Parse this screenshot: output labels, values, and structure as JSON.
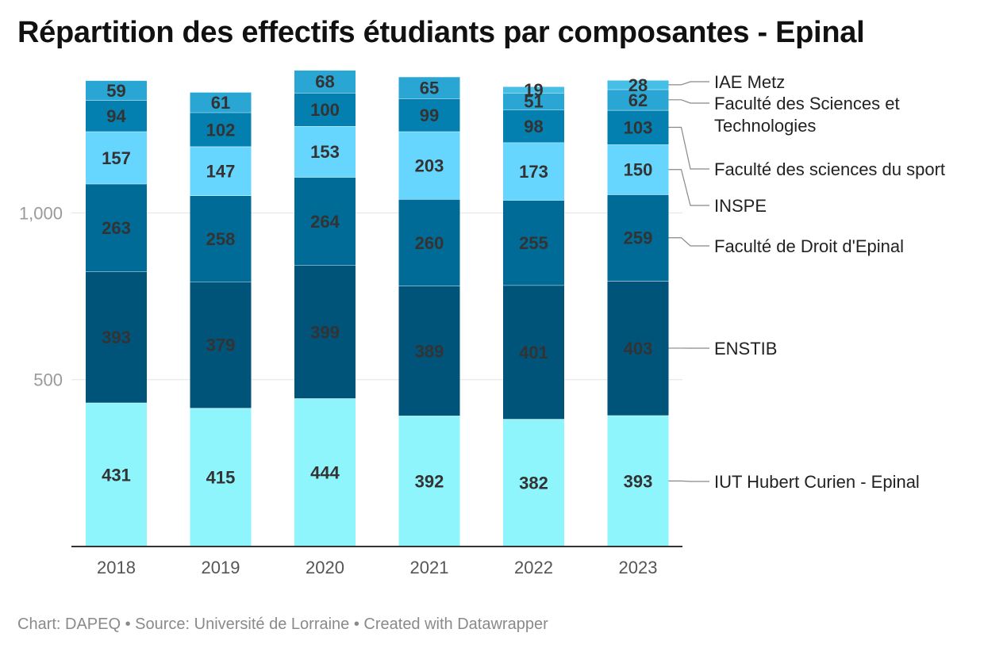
{
  "title": "Répartition des effectifs étudiants par composantes - Epinal",
  "footer": {
    "text": "Chart: DAPEQ • Source: Université de Lorraine • Created with Datawrapper"
  },
  "chart_data": {
    "type": "bar",
    "stacked": true,
    "title": "Répartition des effectifs étudiants par composantes - Epinal",
    "categories": [
      "2018",
      "2019",
      "2020",
      "2021",
      "2022",
      "2023"
    ],
    "ylim": [
      0,
      1450
    ],
    "yticks": [
      500,
      1000
    ],
    "ytick_labels": [
      "500",
      "1,000"
    ],
    "grid": true,
    "legend_position": "right",
    "series": [
      {
        "name": "IUT Hubert Curien - Epinal",
        "color": "#8ef5fc",
        "values": [
          431,
          415,
          444,
          392,
          382,
          393
        ]
      },
      {
        "name": "ENSTIB",
        "color": "#00547a",
        "values": [
          393,
          379,
          399,
          389,
          401,
          403
        ]
      },
      {
        "name": "Faculté de Droit d'Epinal",
        "color": "#006b96",
        "values": [
          263,
          258,
          264,
          260,
          255,
          259
        ]
      },
      {
        "name": "INSPE",
        "color": "#66d6ff",
        "values": [
          157,
          147,
          153,
          203,
          173,
          150
        ]
      },
      {
        "name": "Faculté des sciences du sport",
        "color": "#0480b0",
        "values": [
          94,
          102,
          100,
          99,
          98,
          103
        ]
      },
      {
        "name": "Faculté des Sciences et Technologies",
        "color": "#2aa6d4",
        "values": [
          59,
          61,
          68,
          65,
          51,
          62
        ]
      },
      {
        "name": "IAE Metz",
        "color": "#46bfe6",
        "values": [
          null,
          null,
          null,
          null,
          19,
          28
        ]
      }
    ]
  }
}
